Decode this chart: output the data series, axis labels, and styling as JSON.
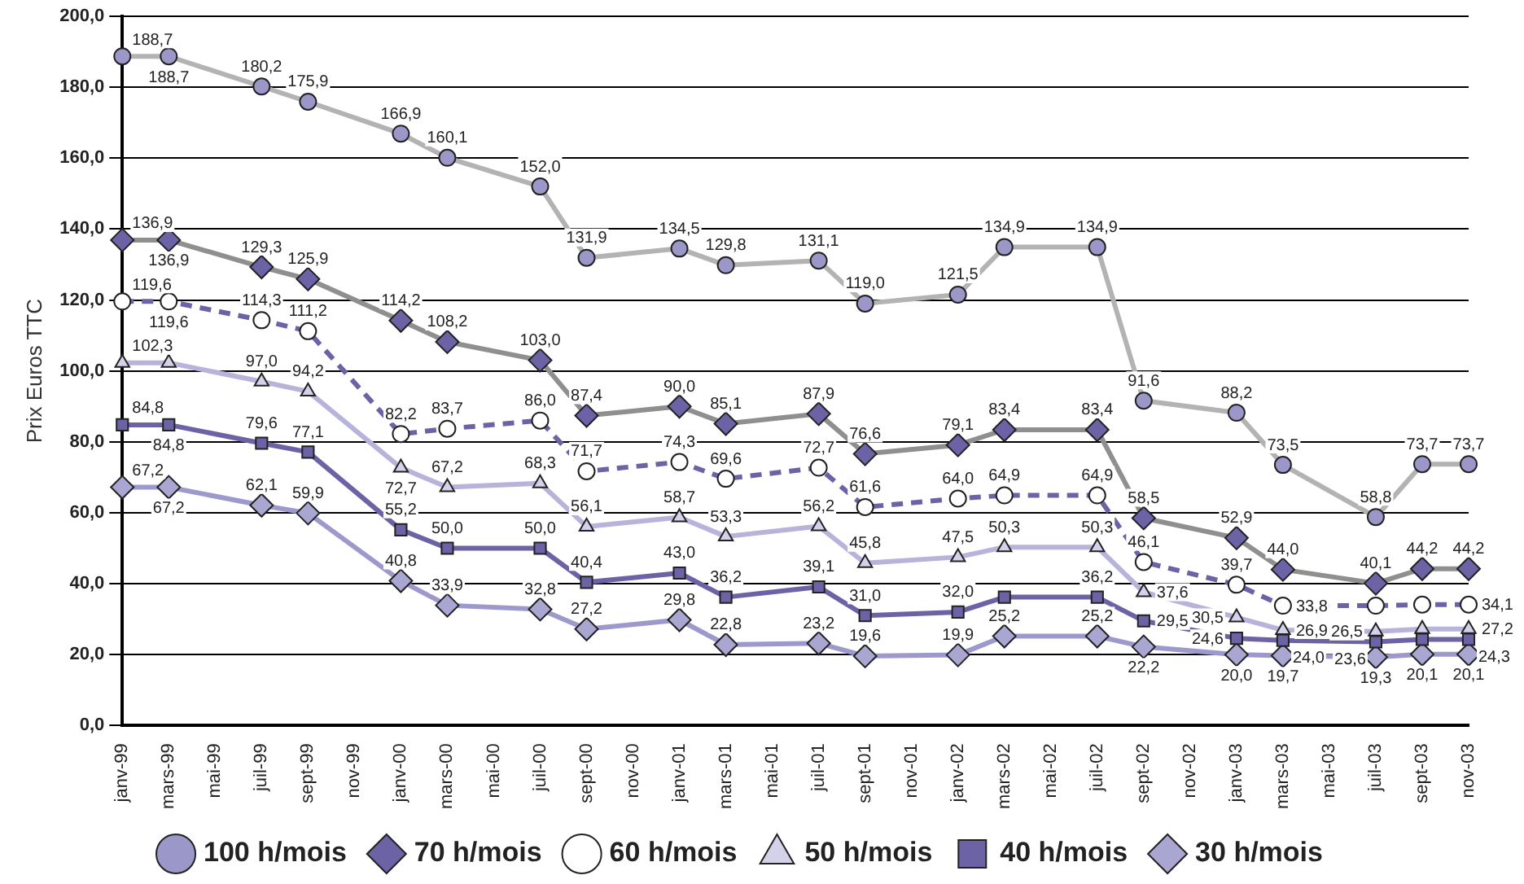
{
  "chart_data": {
    "type": "line",
    "ylabel": "Prix Euros TTC",
    "categories": [
      "janv-99",
      "mars-99",
      "mai-99",
      "juil-99",
      "sept-99",
      "nov-99",
      "janv-00",
      "mars-00",
      "mai-00",
      "juil-00",
      "sept-00",
      "nov-00",
      "janv-01",
      "mars-01",
      "mai-01",
      "juil-01",
      "sept-01",
      "nov-01",
      "janv-02",
      "mars-02",
      "mai-02",
      "juil-02",
      "sept-02",
      "nov-02",
      "janv-03",
      "mars-03",
      "mai-03",
      "juil-03",
      "sept-03",
      "nov-03"
    ],
    "ylim": [
      0,
      200
    ],
    "yticks": [
      {
        "value": 0,
        "label": "0,0"
      },
      {
        "value": 20,
        "label": "20,0"
      },
      {
        "value": 40,
        "label": "40,0"
      },
      {
        "value": 60,
        "label": "60,0"
      },
      {
        "value": 80,
        "label": "80,0"
      },
      {
        "value": 100,
        "label": "100,0"
      },
      {
        "value": 120,
        "label": "120,0"
      },
      {
        "value": 140,
        "label": "140,0"
      },
      {
        "value": 160,
        "label": "160,0"
      },
      {
        "value": 180,
        "label": "180,0"
      },
      {
        "value": 200,
        "label": "200,0"
      }
    ],
    "grid": "y",
    "legend": "bottom",
    "series": [
      {
        "name": "100 h/mois",
        "color": "#9b97c8",
        "marker": "circle",
        "line_style": "solid",
        "values": [
          188.7,
          188.7,
          null,
          180.2,
          175.9,
          null,
          166.9,
          160.1,
          null,
          152.0,
          131.9,
          null,
          134.5,
          129.8,
          null,
          131.1,
          119.0,
          null,
          121.5,
          134.9,
          null,
          134.9,
          91.6,
          null,
          88.2,
          73.5,
          null,
          58.8,
          73.7,
          73.7
        ],
        "value_labels": [
          "188,7",
          "188,7",
          null,
          "180,2",
          "175,9",
          null,
          "166,9",
          "160,1",
          null,
          "152,0",
          "131,9",
          null,
          "134,5",
          "129,8",
          null,
          "131,1",
          "119,0",
          null,
          "121,5",
          "134,9",
          null,
          "134,9",
          "91,6",
          null,
          "88,2",
          "73,5",
          null,
          "58,8",
          "73,7",
          "73,7"
        ]
      },
      {
        "name": "70 h/mois",
        "color": "#6b63a5",
        "marker": "diamond",
        "line_style": "solid",
        "values": [
          136.9,
          136.9,
          null,
          129.3,
          125.9,
          null,
          114.2,
          108.2,
          null,
          103.0,
          87.4,
          null,
          90.0,
          85.1,
          null,
          87.9,
          76.6,
          null,
          79.1,
          83.4,
          null,
          83.4,
          58.5,
          null,
          52.9,
          44.0,
          null,
          40.1,
          44.2,
          44.2
        ],
        "value_labels": [
          "136,9",
          "136,9",
          null,
          "129,3",
          "125,9",
          null,
          "114,2",
          "108,2",
          null,
          "103,0",
          "87,4",
          null,
          "90,0",
          "85,1",
          null,
          "87,9",
          "76,6",
          null,
          "79,1",
          "83,4",
          null,
          "83,4",
          "58,5",
          null,
          "52,9",
          "44,0",
          null,
          "40,1",
          "44,2",
          "44,2"
        ]
      },
      {
        "name": "60 h/mois",
        "color": "#ffffff",
        "marker": "circle",
        "line_style": "dashed",
        "values": [
          119.6,
          119.6,
          null,
          114.3,
          111.2,
          null,
          82.2,
          83.7,
          null,
          86.0,
          71.7,
          null,
          74.3,
          69.6,
          null,
          72.7,
          61.6,
          null,
          64.0,
          64.9,
          null,
          64.9,
          46.1,
          null,
          39.7,
          33.8,
          null,
          33.8,
          34.1,
          34.1
        ],
        "value_labels": [
          "119,6",
          "119,6",
          null,
          "114,3",
          "111,2",
          null,
          "82,2",
          "83,7",
          null,
          "86,0",
          "71,7",
          null,
          "74,3",
          "69,6",
          null,
          "72,7",
          "61,6",
          null,
          "64,0",
          "64,9",
          null,
          "64,9",
          "46,1",
          null,
          "39,7",
          "33,8",
          null,
          null,
          null,
          "34,1"
        ]
      },
      {
        "name": "50 h/mois",
        "color": "#d4d2ea",
        "marker": "triangle",
        "line_style": "solid",
        "values": [
          102.3,
          102.3,
          null,
          97.0,
          94.2,
          null,
          72.7,
          67.2,
          null,
          68.3,
          56.1,
          null,
          58.7,
          53.3,
          null,
          56.2,
          45.8,
          null,
          47.5,
          50.3,
          null,
          50.3,
          37.6,
          null,
          30.5,
          26.9,
          null,
          26.5,
          27.2,
          27.2
        ],
        "value_labels": [
          "102,3",
          null,
          null,
          "97,0",
          "94,2",
          null,
          "72,7",
          "67,2",
          null,
          "68,3",
          "56,1",
          null,
          "58,7",
          "53,3",
          null,
          "56,2",
          "45,8",
          null,
          "47,5",
          "50,3",
          null,
          "50,3",
          "37,6",
          null,
          "30,5",
          "26,9",
          null,
          "26,5",
          null,
          "27,2"
        ]
      },
      {
        "name": "40 h/mois",
        "color": "#6b63a5",
        "marker": "square",
        "line_style": "solid",
        "values": [
          84.8,
          84.8,
          null,
          79.6,
          77.1,
          null,
          55.2,
          50.0,
          null,
          50.0,
          40.4,
          null,
          43.0,
          36.2,
          null,
          39.1,
          31.0,
          null,
          32.0,
          36.2,
          null,
          36.2,
          29.5,
          null,
          24.6,
          24.0,
          null,
          23.6,
          24.3,
          24.3
        ],
        "value_labels": [
          "84,8",
          "84,8",
          null,
          "79,6",
          "77,1",
          null,
          "55,2",
          "50,0",
          null,
          "50,0",
          "40,4",
          null,
          "43,0",
          "36,2",
          null,
          "39,1",
          "31,0",
          null,
          "32,0",
          null,
          null,
          "36,2",
          "29,5",
          null,
          "24,6",
          "24,0",
          null,
          "23,6",
          null,
          "24,3"
        ]
      },
      {
        "name": "30 h/mois",
        "color": "#aaa6d2",
        "marker": "diamond",
        "line_style": "solid",
        "values": [
          67.2,
          67.2,
          null,
          62.1,
          59.9,
          null,
          40.8,
          33.9,
          null,
          32.8,
          27.2,
          null,
          29.8,
          22.8,
          null,
          23.2,
          19.6,
          null,
          19.9,
          25.2,
          null,
          25.2,
          22.2,
          null,
          20.0,
          19.7,
          null,
          19.3,
          20.1,
          20.1
        ],
        "value_labels": [
          "67,2",
          "67,2",
          null,
          "62,1",
          "59,9",
          null,
          "40,8",
          "33,9",
          null,
          "32,8",
          "27,2",
          null,
          "29,8",
          "22,8",
          null,
          "23,2",
          "19,6",
          null,
          "19,9",
          "25,2",
          null,
          "25,2",
          "22,2",
          null,
          "20,0",
          "19,7",
          null,
          "19,3",
          "20,1",
          "20,1"
        ]
      }
    ]
  }
}
